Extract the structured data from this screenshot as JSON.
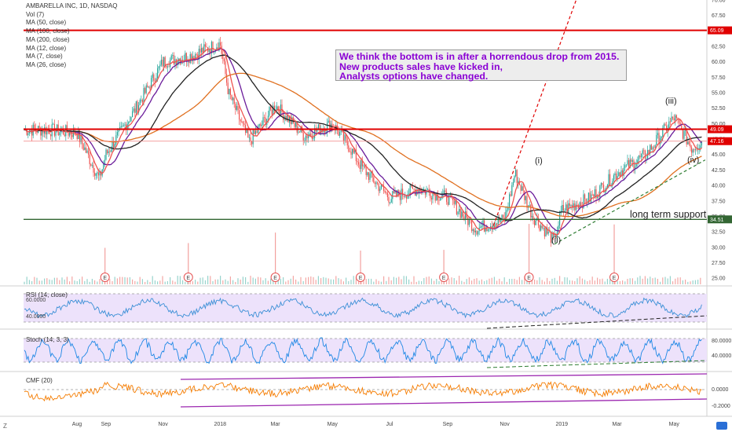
{
  "header": {
    "title": "AMBARELLA INC, 1D, NASDAQ",
    "indicators": [
      "Vol (7)",
      "MA (50, close)",
      "MA (100, close)",
      "MA (200, close)",
      "MA (12, close)",
      "MA (7, close)",
      "MA (26, close)"
    ]
  },
  "annotation": {
    "lines": [
      "We think the bottom is in after a horrendous drop from 2015.",
      "New products sales have kicked in,",
      "Analysts options have changed."
    ],
    "color": "#8a00d4"
  },
  "wave_labels": [
    "(i)",
    "(ii)",
    "(iii)",
    "(iv)"
  ],
  "support_text": "long term support",
  "earnings_marker": "E",
  "corner_left": "Z",
  "price_axis": {
    "ticks": [
      "70.00",
      "67.50",
      "65.00",
      "62.50",
      "60.00",
      "57.50",
      "55.00",
      "52.50",
      "50.00",
      "47.50",
      "45.00",
      "42.50",
      "40.00",
      "37.50",
      "35.00",
      "32.50",
      "30.00",
      "27.50",
      "25.00"
    ],
    "tags": [
      {
        "text": "65.09",
        "color": "#e00000"
      },
      {
        "text": "49.09",
        "color": "#e00000"
      },
      {
        "text": "47.16",
        "color": "#e00000"
      },
      {
        "text": "34.51",
        "color": "#336633"
      }
    ]
  },
  "time_axis": [
    "Aug",
    "Sep",
    "Nov",
    "2018",
    "Mar",
    "May",
    "Jul",
    "Sep",
    "Nov",
    "2019",
    "Mar",
    "May"
  ],
  "rsi_pane": {
    "title": "RSI (14, close)",
    "ticks": [
      "60.0000",
      "40.0000"
    ]
  },
  "stoch_pane": {
    "title": "Stoch (14, 3, 3)",
    "ticks": [
      "80.0000",
      "40.0000"
    ]
  },
  "cmf_pane": {
    "title": "CMF (20)",
    "ticks": [
      "0.0000",
      "-0.2000"
    ]
  },
  "colors": {
    "resistance": "#e00000",
    "support": "#336633",
    "up": "#26a69a",
    "down": "#ef5350",
    "ma50": "#6a1b9a",
    "ma200": "#222222",
    "ma100": "#e07020",
    "cmf": "#f57c00",
    "channel": "#9c27b0"
  },
  "chart_data": {
    "type": "candlestick",
    "symbol": "AMBARELLA INC",
    "interval": "1D",
    "exchange": "NASDAQ",
    "ylim": [
      24,
      70
    ],
    "resistance_lines": [
      65.09,
      49.09
    ],
    "support_line": 34.51,
    "current_price": 47.16,
    "price_path": [
      {
        "x": "2017-07",
        "y": 49
      },
      {
        "x": "2017-08",
        "y": 48.5
      },
      {
        "x": "2017-08-25",
        "y": 41
      },
      {
        "x": "2017-09",
        "y": 45
      },
      {
        "x": "2017-10",
        "y": 52
      },
      {
        "x": "2017-11",
        "y": 60
      },
      {
        "x": "2017-12",
        "y": 61
      },
      {
        "x": "2018-01",
        "y": 63
      },
      {
        "x": "2018-01-10",
        "y": 55
      },
      {
        "x": "2018-02",
        "y": 47
      },
      {
        "x": "2018-03",
        "y": 53
      },
      {
        "x": "2018-04",
        "y": 48
      },
      {
        "x": "2018-05",
        "y": 50
      },
      {
        "x": "2018-05-20",
        "y": 46
      },
      {
        "x": "2018-06",
        "y": 43
      },
      {
        "x": "2018-07",
        "y": 38
      },
      {
        "x": "2018-08",
        "y": 39.5
      },
      {
        "x": "2018-09",
        "y": 38
      },
      {
        "x": "2018-10",
        "y": 33
      },
      {
        "x": "2018-11",
        "y": 34.5
      },
      {
        "x": "2018-11-12",
        "y": 42
      },
      {
        "x": "2018-12",
        "y": 35
      },
      {
        "x": "2018-12-24",
        "y": 31
      },
      {
        "x": "2019-01",
        "y": 36
      },
      {
        "x": "2019-02",
        "y": 38
      },
      {
        "x": "2019-03",
        "y": 42
      },
      {
        "x": "2019-04",
        "y": 45
      },
      {
        "x": "2019-05",
        "y": 51
      },
      {
        "x": "2019-05-20",
        "y": 46
      },
      {
        "x": "2019-05-31",
        "y": 47.16
      }
    ],
    "moving_averages": [
      {
        "name": "MA (50, close)",
        "color": "#6a1b9a"
      },
      {
        "name": "MA (100, close)",
        "color": "#e07020"
      },
      {
        "name": "MA (200, close)",
        "color": "#222222"
      }
    ],
    "wave_points": [
      {
        "label": "(i)",
        "x": "2018-11-12",
        "y": 43
      },
      {
        "label": "(ii)",
        "x": "2018-12-24",
        "y": 30.5
      },
      {
        "label": "(iii)",
        "x": "2019-05",
        "y": 51.5
      },
      {
        "label": "(iv)",
        "x": "2019-05-28",
        "y": 45
      }
    ],
    "earnings_dates": [
      "2017-08-31",
      "2017-11-28",
      "2018-03-01",
      "2018-05-31",
      "2018-08-28",
      "2018-11-27",
      "2019-02-26"
    ]
  }
}
